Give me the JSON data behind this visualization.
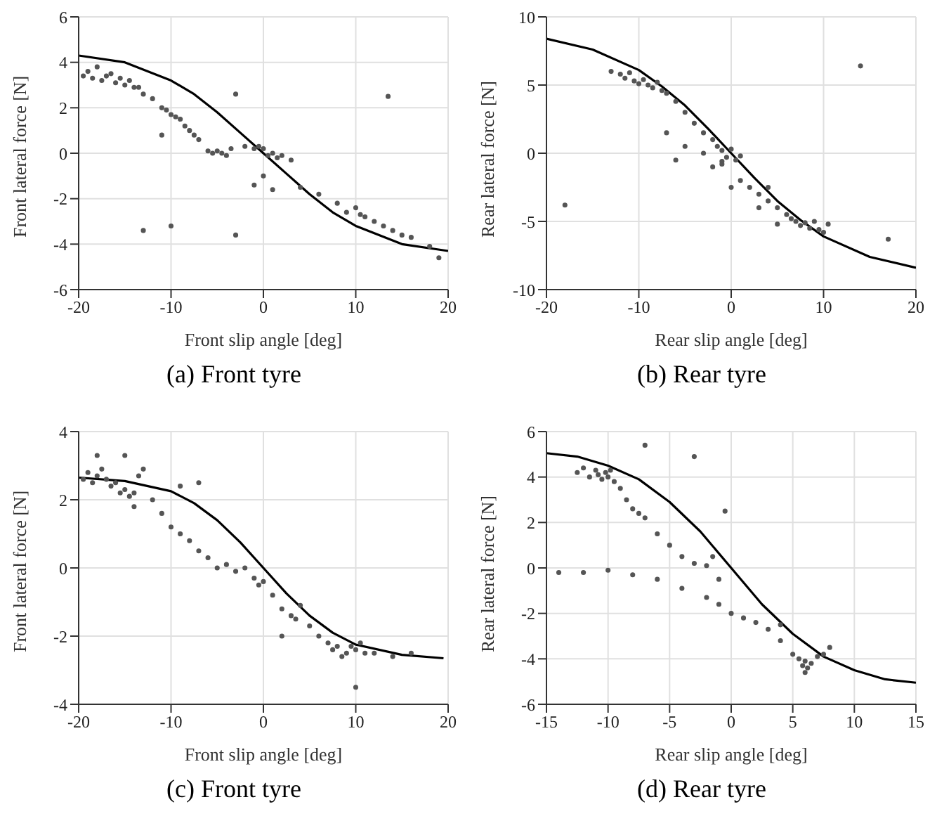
{
  "chart_data": [
    {
      "type": "scatter",
      "title": "(a) Front tyre",
      "xlabel": "Front slip angle [deg]",
      "ylabel": "Front lateral force [N]",
      "xlim": [
        -20,
        20
      ],
      "xticks": [
        -20,
        -10,
        0,
        10,
        20
      ],
      "ylim": [
        -6,
        6
      ],
      "yticks": [
        -6,
        -4,
        -2,
        0,
        2,
        4,
        6
      ],
      "grid": true,
      "series": [
        {
          "marker": "circle",
          "color": "#555555",
          "x": [
            -19.5,
            -19,
            -18.5,
            -18,
            -17.5,
            -17,
            -16.5,
            -16,
            -15.5,
            -15,
            -14.5,
            -14,
            -13.5,
            -13,
            -12,
            -11,
            -10.5,
            -10,
            -9.5,
            -9,
            -8.5,
            -8,
            -7.5,
            -7,
            -6,
            -5.5,
            -5,
            -4.5,
            -4,
            -3.5,
            -3,
            -2,
            -1,
            -0.5,
            0,
            0.5,
            1,
            1.5,
            2,
            3,
            0,
            -1,
            1,
            4,
            6,
            8,
            9,
            10,
            10.5,
            11,
            12,
            13,
            14,
            15,
            16,
            18,
            19,
            -11,
            -13,
            -3,
            13.5,
            -10
          ],
          "values": [
            3.4,
            3.6,
            3.3,
            3.8,
            3.2,
            3.4,
            3.5,
            3.1,
            3.3,
            3.0,
            3.2,
            2.9,
            2.9,
            2.6,
            2.4,
            2.0,
            1.9,
            1.7,
            1.6,
            1.5,
            1.2,
            1.0,
            0.8,
            0.6,
            0.1,
            0,
            0.1,
            0,
            -0.1,
            0.2,
            2.6,
            0.3,
            0.2,
            0.3,
            0.2,
            -0.1,
            0,
            -0.2,
            -0.1,
            -0.3,
            -1.0,
            -1.4,
            -1.6,
            -1.5,
            -1.8,
            -2.2,
            -2.6,
            -2.4,
            -2.7,
            -2.8,
            -3.0,
            -3.2,
            -3.4,
            -3.6,
            -3.7,
            -4.1,
            -4.6,
            0.8,
            -3.4,
            -3.6,
            2.5,
            -3.2
          ]
        },
        {
          "type": "line",
          "marker": "none",
          "color": "#000000",
          "x": [
            -20,
            -15,
            -10,
            -7.5,
            -5,
            -2.5,
            0,
            2.5,
            5,
            7.5,
            10,
            15,
            20
          ],
          "values": [
            4.3,
            4.0,
            3.2,
            2.6,
            1.8,
            0.9,
            0,
            -0.9,
            -1.8,
            -2.6,
            -3.2,
            -4.0,
            -4.3
          ]
        }
      ]
    },
    {
      "type": "scatter",
      "title": "(b) Rear tyre",
      "xlabel": "Rear slip angle [deg]",
      "ylabel": "Rear lateral force [N]",
      "xlim": [
        -20,
        20
      ],
      "xticks": [
        -20,
        -10,
        0,
        10,
        20
      ],
      "ylim": [
        -10,
        10
      ],
      "yticks": [
        -10,
        -5,
        0,
        5,
        10
      ],
      "grid": true,
      "series": [
        {
          "marker": "circle",
          "color": "#555555",
          "x": [
            -13,
            -12,
            -11.5,
            -11,
            -10.5,
            -10,
            -9.5,
            -9,
            -8.5,
            -8,
            -7.5,
            -7,
            -6,
            -5,
            -4,
            -3,
            -2,
            -1.5,
            -1,
            -0.5,
            0,
            0.5,
            1,
            -1,
            -3,
            -5,
            -7,
            -2,
            1,
            2,
            3,
            4,
            5,
            6,
            6.5,
            7,
            7.5,
            8,
            8.5,
            9,
            9.5,
            10,
            10.5,
            5,
            3,
            -1,
            4,
            -18,
            14,
            17,
            -6,
            0
          ],
          "values": [
            6.0,
            5.8,
            5.5,
            5.9,
            5.3,
            5.1,
            5.4,
            5.0,
            4.8,
            5.2,
            4.6,
            4.4,
            3.8,
            3.0,
            2.2,
            1.5,
            1.0,
            0.5,
            0.2,
            -0.3,
            0.3,
            -0.5,
            -0.2,
            -0.6,
            0,
            0.5,
            1.5,
            -1.0,
            -2.0,
            -2.5,
            -3.0,
            -3.5,
            -4.0,
            -4.5,
            -4.8,
            -5.0,
            -5.3,
            -5.1,
            -5.5,
            -5.0,
            -5.6,
            -5.8,
            -5.2,
            -5.2,
            -4.0,
            -0.8,
            -2.5,
            -3.8,
            6.4,
            -6.3,
            -0.5,
            -2.5
          ]
        },
        {
          "type": "line",
          "marker": "none",
          "color": "#000000",
          "x": [
            -20,
            -15,
            -10,
            -7.5,
            -5,
            -2.5,
            0,
            2.5,
            5,
            7.5,
            10,
            15,
            20
          ],
          "values": [
            8.4,
            7.6,
            6.1,
            4.9,
            3.5,
            1.8,
            0,
            -1.8,
            -3.5,
            -4.9,
            -6.1,
            -7.6,
            -8.4
          ]
        }
      ]
    },
    {
      "type": "scatter",
      "title": "(c) Front tyre",
      "xlabel": "Front slip angle [deg]",
      "ylabel": "Front lateral force [N]",
      "xlim": [
        -20,
        20
      ],
      "xticks": [
        -20,
        -10,
        0,
        10,
        20
      ],
      "ylim": [
        -4,
        4
      ],
      "yticks": [
        -4,
        -2,
        0,
        2,
        4
      ],
      "grid": true,
      "series": [
        {
          "marker": "circle",
          "color": "#555555",
          "x": [
            -19.5,
            -19,
            -18.5,
            -18,
            -17.5,
            -17,
            -16.5,
            -16,
            -15.5,
            -15,
            -14.5,
            -14,
            -13.5,
            -13,
            -15,
            -12,
            -11,
            -10,
            -9,
            -8,
            -7,
            -6,
            -5,
            -4,
            -3,
            -2,
            -1,
            -0.5,
            0,
            1,
            2,
            3,
            3.5,
            4,
            5,
            6,
            7,
            7.5,
            8,
            8.5,
            9,
            9.5,
            10,
            10.5,
            11,
            12,
            14,
            16,
            -18,
            -14,
            10,
            -7,
            2,
            -9
          ],
          "values": [
            2.6,
            2.8,
            2.5,
            2.7,
            2.9,
            2.6,
            2.4,
            2.5,
            2.2,
            2.3,
            2.1,
            2.2,
            2.7,
            2.9,
            3.3,
            2.0,
            1.6,
            1.2,
            1.0,
            0.8,
            0.5,
            0.3,
            0,
            0.1,
            -0.1,
            0,
            -0.3,
            -0.5,
            -0.4,
            -0.8,
            -1.2,
            -1.4,
            -1.5,
            -1.1,
            -1.7,
            -2.0,
            -2.2,
            -2.4,
            -2.3,
            -2.6,
            -2.5,
            -2.3,
            -2.4,
            -2.2,
            -2.5,
            -2.5,
            -2.6,
            -2.5,
            3.3,
            1.8,
            -3.5,
            2.5,
            -2.0,
            2.4
          ]
        },
        {
          "type": "line",
          "marker": "none",
          "color": "#000000",
          "x": [
            -20,
            -15,
            -10,
            -7.5,
            -5,
            -2.5,
            0,
            2.5,
            5,
            7.5,
            10,
            15,
            19.5
          ],
          "values": [
            2.65,
            2.55,
            2.25,
            1.9,
            1.4,
            0.75,
            0,
            -0.75,
            -1.4,
            -1.9,
            -2.25,
            -2.55,
            -2.65
          ]
        }
      ]
    },
    {
      "type": "scatter",
      "title": "(d) Rear tyre",
      "xlabel": "Rear slip angle [deg]",
      "ylabel": "Rear lateral force [N]",
      "xlim": [
        -15,
        15
      ],
      "xticks": [
        -15,
        -10,
        -5,
        0,
        5,
        10,
        15
      ],
      "ylim": [
        -6,
        6
      ],
      "yticks": [
        -6,
        -4,
        -2,
        0,
        2,
        4,
        6
      ],
      "grid": true,
      "series": [
        {
          "marker": "circle",
          "color": "#555555",
          "x": [
            -12.5,
            -12,
            -11.5,
            -11,
            -10.8,
            -10.5,
            -10.2,
            -10,
            -9.8,
            -9.5,
            -9,
            -8.5,
            -8,
            -7.5,
            -7,
            -6,
            -5,
            -4,
            -3,
            -2,
            -1.5,
            -1,
            -14,
            -12,
            -10,
            -8,
            -6,
            -4,
            -2,
            -1,
            0,
            1,
            2,
            3,
            4,
            5,
            5.5,
            5.8,
            6,
            6.2,
            6.5,
            7,
            7.5,
            8,
            -7,
            -3,
            -0.5,
            4,
            6
          ],
          "values": [
            4.2,
            4.4,
            4.0,
            4.3,
            4.1,
            3.9,
            4.2,
            4.0,
            4.3,
            3.8,
            3.5,
            3.0,
            2.6,
            2.4,
            2.2,
            1.5,
            1.0,
            0.5,
            0.2,
            0.1,
            0.5,
            -0.5,
            -0.2,
            -0.2,
            -0.1,
            -0.3,
            -0.5,
            -0.9,
            -1.3,
            -1.6,
            -2.0,
            -2.2,
            -2.4,
            -2.7,
            -3.2,
            -3.8,
            -4.0,
            -4.3,
            -4.1,
            -4.4,
            -4.2,
            -3.9,
            -3.8,
            -3.5,
            5.4,
            4.9,
            2.5,
            -2.5,
            -4.6
          ]
        },
        {
          "type": "line",
          "marker": "none",
          "color": "#000000",
          "x": [
            -15,
            -12.5,
            -10,
            -7.5,
            -5,
            -2.5,
            0,
            2.5,
            5,
            7.5,
            10,
            12.5,
            15
          ],
          "values": [
            5.05,
            4.9,
            4.5,
            3.9,
            2.9,
            1.6,
            0,
            -1.6,
            -2.9,
            -3.9,
            -4.5,
            -4.9,
            -5.05
          ]
        }
      ]
    }
  ]
}
